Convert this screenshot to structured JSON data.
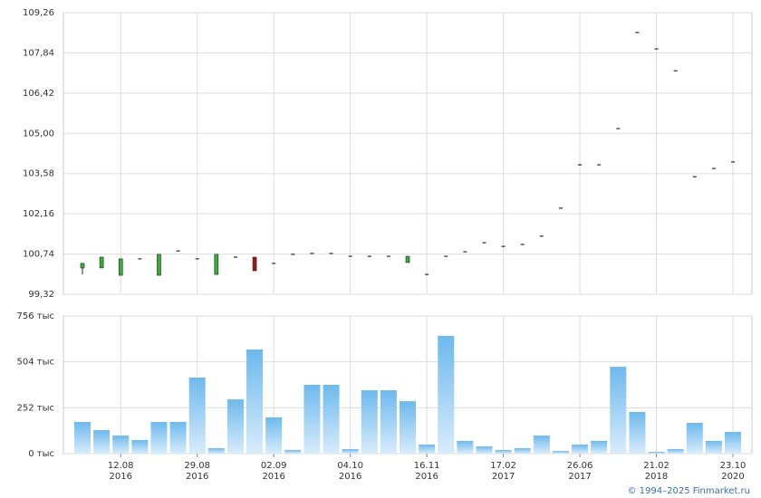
{
  "chart_data": [
    {
      "type": "candlestick",
      "up_color": "#33b233",
      "down_color": "#a01818",
      "flat_color": "#000000",
      "open": [
        100.25,
        100.25,
        99.99,
        100.57,
        99.99,
        100.85,
        100.57,
        100.02,
        100.63,
        100.63,
        100.41,
        100.73,
        100.76,
        100.76,
        100.66,
        100.66,
        100.66,
        100.44,
        100.02,
        100.66,
        100.82,
        101.14,
        101.01,
        101.08,
        101.37,
        102.36,
        103.89,
        103.89,
        105.17,
        108.56,
        107.98,
        107.21,
        103.47,
        103.76,
        103.99
      ],
      "high": [
        100.41,
        100.63,
        100.57,
        100.57,
        100.73,
        100.85,
        100.57,
        100.73,
        100.63,
        100.63,
        100.41,
        100.73,
        100.76,
        100.76,
        100.66,
        100.66,
        100.66,
        100.66,
        100.02,
        100.66,
        100.82,
        101.14,
        101.01,
        101.08,
        101.37,
        102.36,
        103.89,
        103.89,
        105.17,
        108.56,
        107.98,
        107.21,
        103.47,
        103.76,
        103.99
      ],
      "low": [
        100.02,
        100.25,
        99.99,
        100.57,
        99.99,
        100.85,
        100.57,
        100.02,
        100.63,
        100.15,
        100.41,
        100.73,
        100.76,
        100.76,
        100.66,
        100.66,
        100.66,
        100.44,
        100.02,
        100.66,
        100.82,
        101.14,
        101.01,
        101.08,
        101.37,
        102.36,
        103.89,
        103.89,
        105.17,
        108.56,
        107.98,
        107.21,
        103.47,
        103.76,
        103.99
      ],
      "close": [
        100.41,
        100.63,
        100.57,
        100.57,
        100.73,
        100.85,
        100.57,
        100.73,
        100.63,
        100.15,
        100.41,
        100.73,
        100.76,
        100.76,
        100.66,
        100.66,
        100.66,
        100.66,
        100.02,
        100.66,
        100.82,
        101.14,
        101.01,
        101.08,
        101.37,
        102.36,
        103.89,
        103.89,
        105.17,
        108.56,
        107.98,
        107.21,
        103.47,
        103.76,
        103.99
      ],
      "ylim": [
        99.32,
        109.26
      ],
      "yticks": [
        {
          "value": 99.32,
          "label": "99,32"
        },
        {
          "value": 100.74,
          "label": "100,74"
        },
        {
          "value": 102.16,
          "label": "102,16"
        },
        {
          "value": 103.58,
          "label": "103,58"
        },
        {
          "value": 105.0,
          "label": "105,00"
        },
        {
          "value": 106.42,
          "label": "106,42"
        },
        {
          "value": 107.84,
          "label": "107,84"
        },
        {
          "value": 109.26,
          "label": "109,26"
        }
      ],
      "grid": true
    },
    {
      "type": "bar",
      "color_top": "#6db9ee",
      "color_bottom": "#d8ecfb",
      "categories": [
        null,
        null,
        "12.08",
        null,
        null,
        null,
        "29.08",
        null,
        null,
        null,
        "02.09",
        null,
        null,
        null,
        "04.10",
        null,
        null,
        null,
        "16.11",
        null,
        null,
        null,
        "17.02",
        null,
        null,
        null,
        "26.06",
        null,
        null,
        null,
        "21.02",
        null,
        null,
        null,
        "23.10"
      ],
      "category_years": [
        null,
        null,
        "2016",
        null,
        null,
        null,
        "2016",
        null,
        null,
        null,
        "2016",
        null,
        null,
        null,
        "2016",
        null,
        null,
        null,
        "2016",
        null,
        null,
        null,
        "2017",
        null,
        null,
        null,
        "2017",
        null,
        null,
        null,
        "2018",
        null,
        null,
        null,
        "2020"
      ],
      "values": [
        174,
        129,
        99,
        75,
        174,
        174,
        418,
        30,
        298,
        572,
        199,
        20,
        378,
        378,
        25,
        348,
        348,
        288,
        50,
        647,
        70,
        40,
        20,
        30,
        99,
        15,
        50,
        70,
        477,
        229,
        10,
        25,
        169,
        70,
        119
      ],
      "ylim": [
        0,
        756
      ],
      "yticks": [
        {
          "value": 0,
          "label": "0 тыс"
        },
        {
          "value": 252,
          "label": "252 тыс"
        },
        {
          "value": 504,
          "label": "504 тыс"
        },
        {
          "value": 756,
          "label": "756 тыс"
        }
      ],
      "grid": true
    }
  ],
  "footer": "© 1994–2025 Finmarket.ru"
}
